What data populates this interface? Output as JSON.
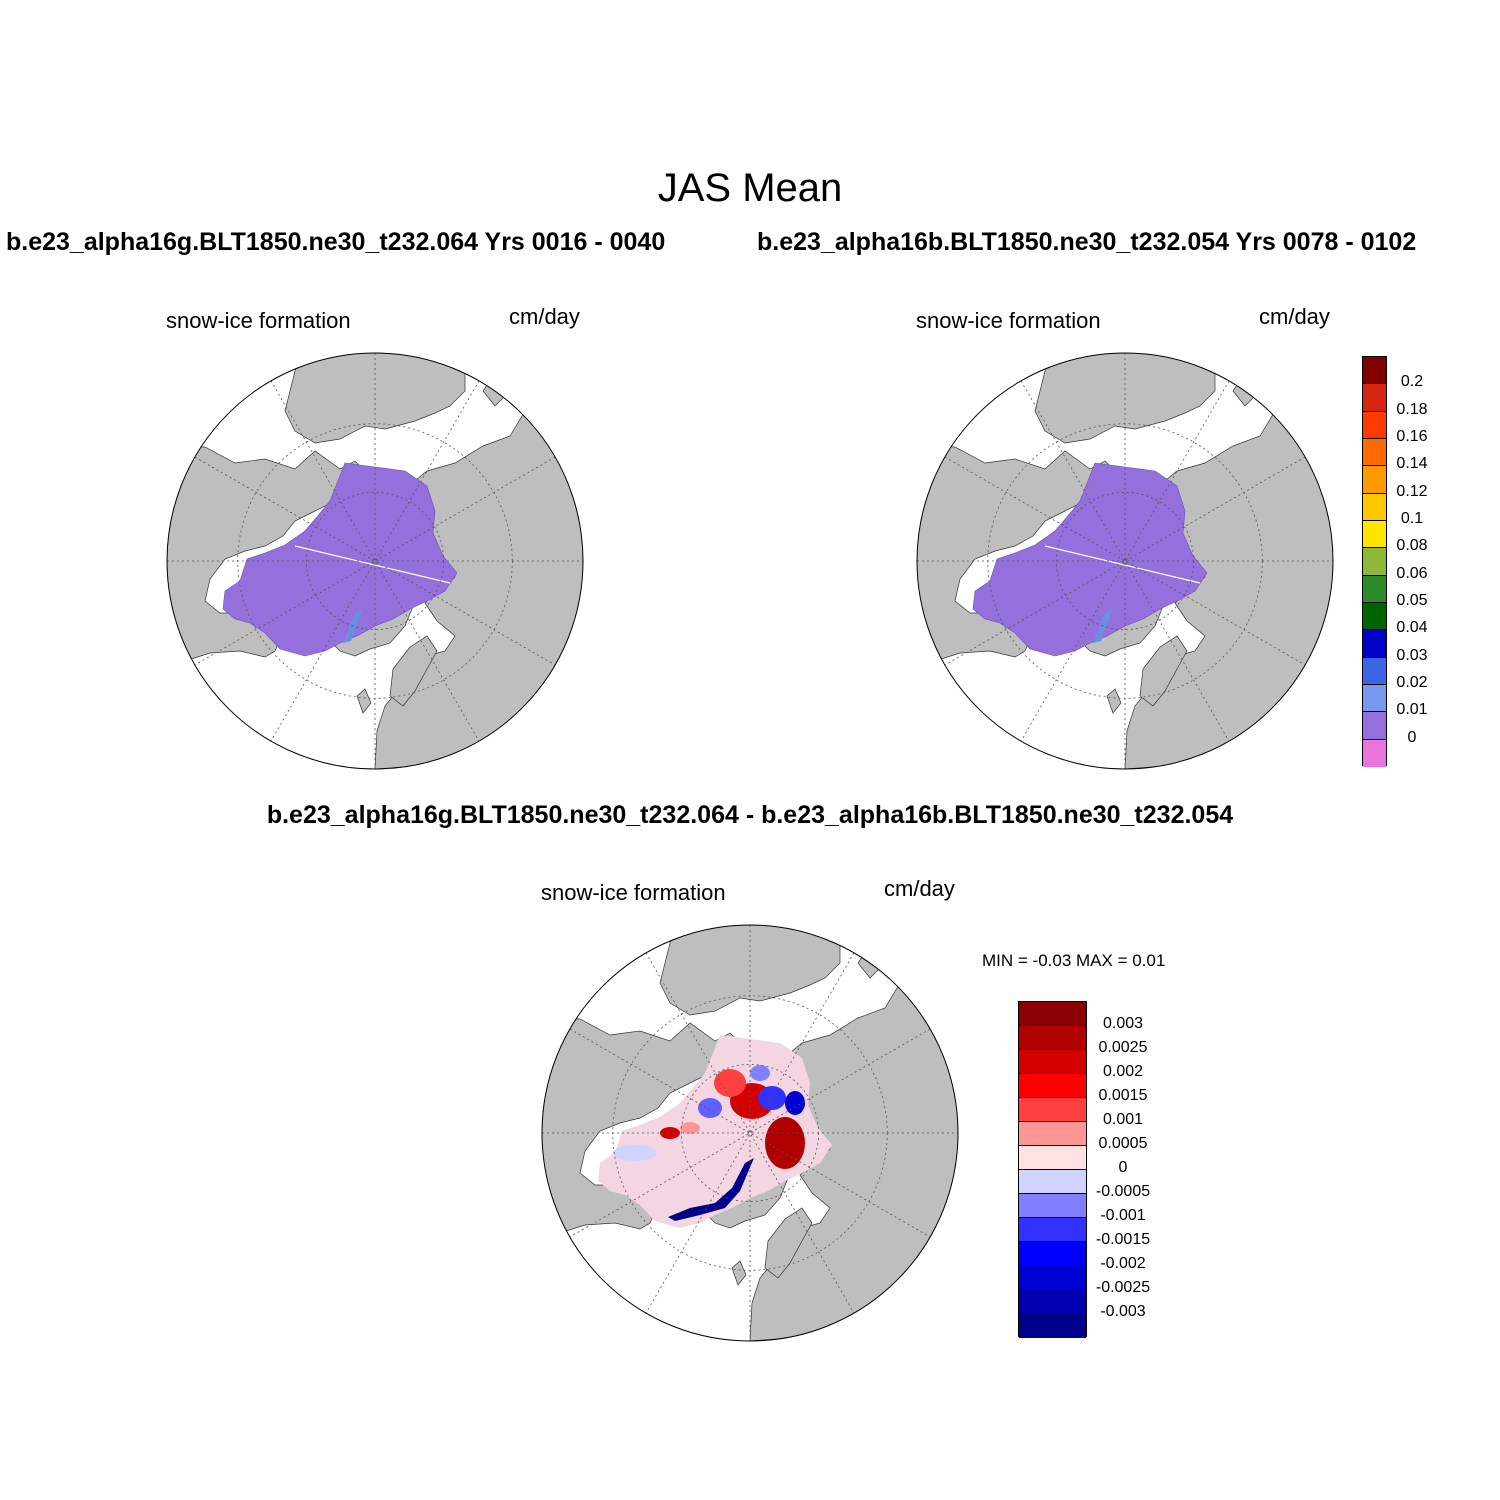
{
  "title": "JAS Mean",
  "panels": {
    "left": {
      "case_title": "b.e23_alpha16g.BLT1850.ne30_t232.064  Yrs 0016 - 0040",
      "var_label": "snow-ice formation",
      "units": "cm/day"
    },
    "right": {
      "case_title": "b.e23_alpha16b.BLT1850.ne30_t232.054  Yrs 0078 - 0102",
      "var_label": "snow-ice formation",
      "units": "cm/day"
    },
    "diff": {
      "title": "b.e23_alpha16g.BLT1850.ne30_t232.064 - b.e23_alpha16b.BLT1850.ne30_t232.054",
      "var_label": "snow-ice formation",
      "units": "cm/day",
      "minmax": "MIN =  -0.03 MAX =   0.01"
    }
  },
  "colors": {
    "land": "#bebebe",
    "ocean": "#ffffff",
    "ice_field": "#9370db",
    "shallow_strip": "#6a8fe0"
  },
  "colorbar_main": {
    "colors": [
      "#800000",
      "#d6260f",
      "#ff3b00",
      "#ff6a00",
      "#ff9a00",
      "#ffc800",
      "#ffe400",
      "#8fb83a",
      "#2a8a2a",
      "#006400",
      "#0000c8",
      "#3c64e6",
      "#7897f0",
      "#9370db",
      "#e874dc"
    ],
    "labels": [
      "0.2",
      "0.18",
      "0.16",
      "0.14",
      "0.12",
      "0.1",
      "0.08",
      "0.06",
      "0.05",
      "0.04",
      "0.03",
      "0.02",
      "0.01",
      "0"
    ]
  },
  "colorbar_diff": {
    "colors": [
      "#8b0000",
      "#b00000",
      "#d40000",
      "#ff0000",
      "#ff4040",
      "#ff9696",
      "#ffe1e1",
      "#d2d2ff",
      "#8080ff",
      "#3232ff",
      "#0000ff",
      "#0000d2",
      "#0000b0",
      "#00008b"
    ],
    "labels": [
      "0.003",
      "0.0025",
      "0.002",
      "0.0015",
      "0.001",
      "0.0005",
      "0",
      "-0.0005",
      "-0.001",
      "-0.0015",
      "-0.002",
      "-0.0025",
      "-0.003"
    ]
  }
}
